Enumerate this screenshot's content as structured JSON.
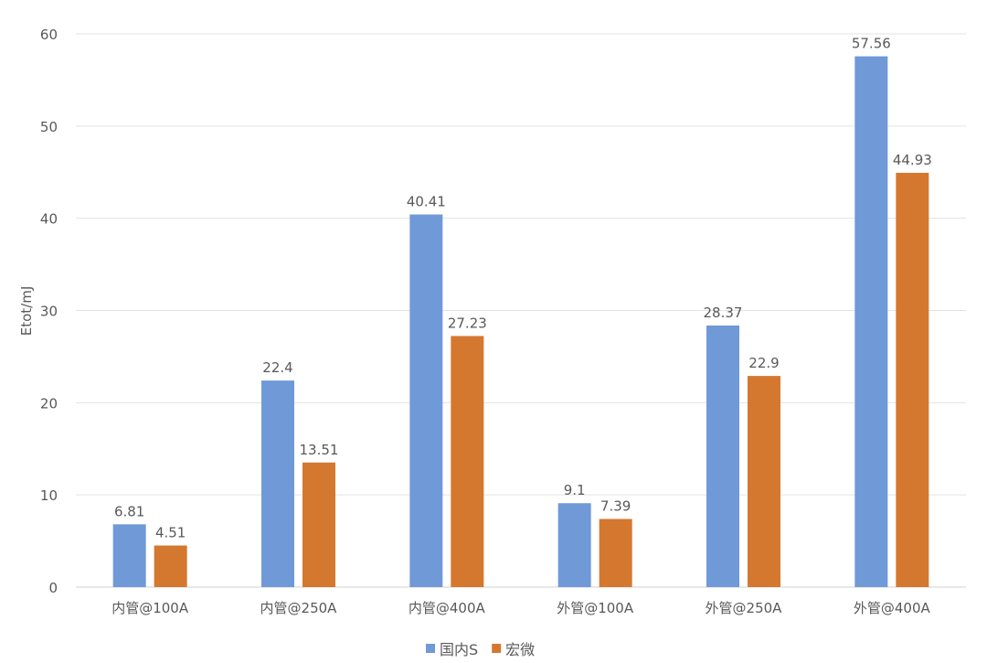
{
  "chart_data": {
    "type": "bar",
    "title": "",
    "xlabel": "",
    "ylabel": "Etot/mJ",
    "ylim": [
      0,
      60
    ],
    "yticks": [
      0,
      10,
      20,
      30,
      40,
      50,
      60
    ],
    "grid": true,
    "legend_position": "bottom",
    "categories": [
      "内管@100A",
      "内管@250A",
      "内管@400A",
      "外管@100A",
      "外管@250A",
      "外管@400A"
    ],
    "series": [
      {
        "name": "国内S",
        "color": "#7099D8",
        "values": [
          6.81,
          22.4,
          40.41,
          9.1,
          28.37,
          57.56
        ]
      },
      {
        "name": "宏微",
        "color": "#D5782F",
        "values": [
          4.51,
          13.51,
          27.23,
          7.39,
          22.9,
          44.93
        ]
      }
    ]
  }
}
